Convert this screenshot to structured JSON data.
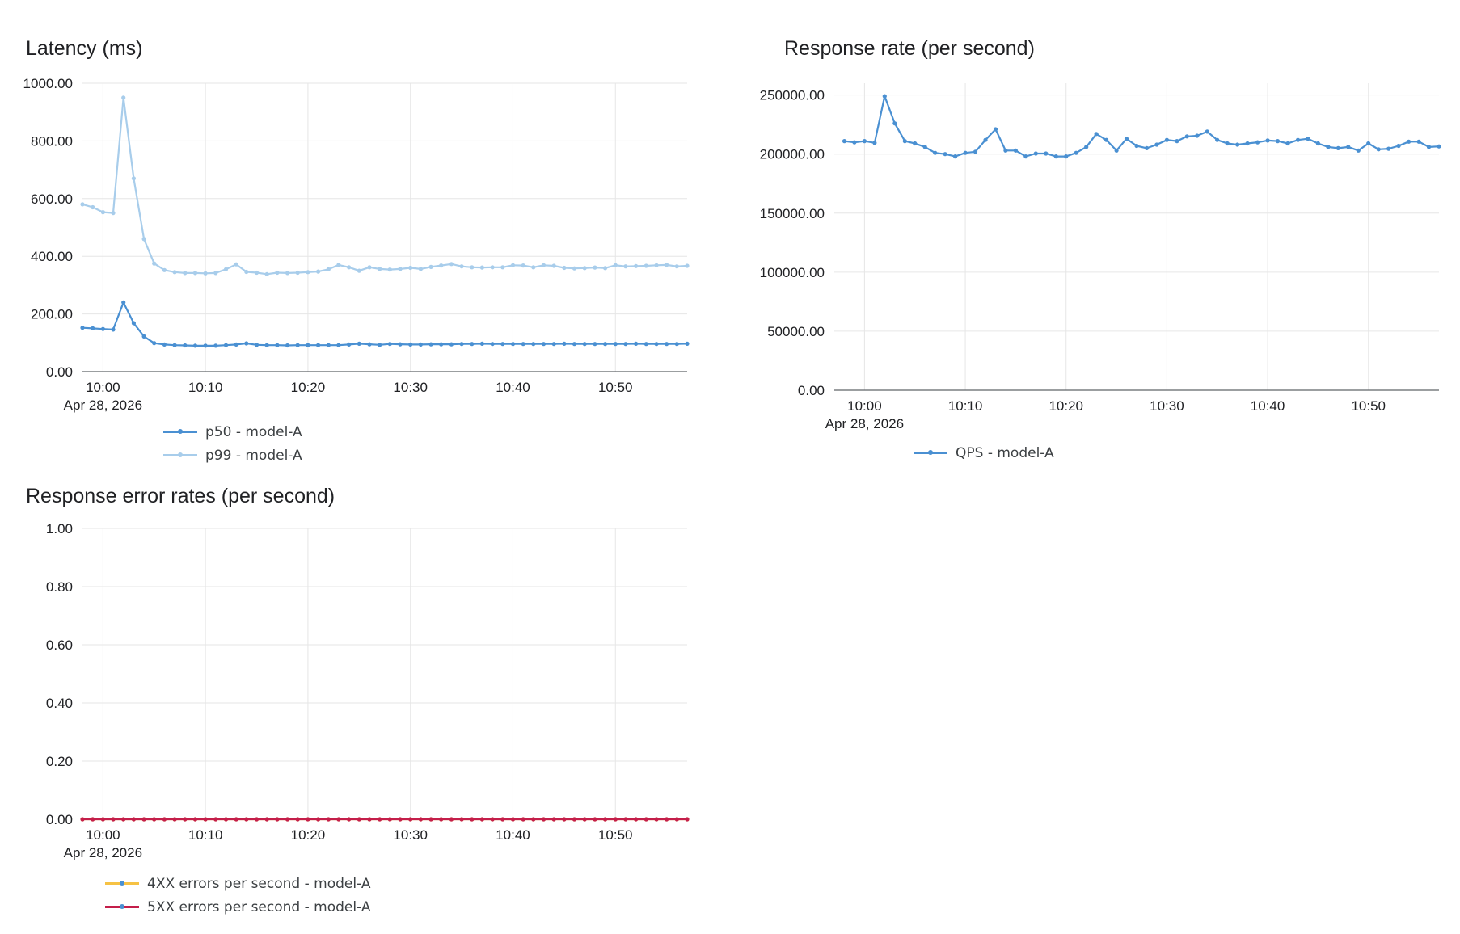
{
  "chart_data": [
    {
      "id": "latency",
      "type": "line",
      "title": "Latency (ms)",
      "xlabel": "",
      "ylabel": "",
      "date_label": "Apr 28, 2026",
      "x_start": "09:58",
      "x_step_minutes": 1,
      "xlim": [
        "09:58",
        "10:57"
      ],
      "x_ticks": [
        "10:00",
        "10:10",
        "10:20",
        "10:30",
        "10:40",
        "10:50"
      ],
      "ylim": [
        0,
        1000
      ],
      "y_ticks": [
        "0.00",
        "200.00",
        "400.00",
        "600.00",
        "800.00",
        "1000.00"
      ],
      "grid": true,
      "legend": "bottom",
      "series": [
        {
          "name": "p50 - model-A",
          "color": "#4a90d2",
          "values": [
            152,
            150,
            148,
            146,
            240,
            168,
            122,
            99,
            94,
            92,
            91,
            90,
            90,
            90,
            92,
            94,
            98,
            93,
            92,
            92,
            91,
            92,
            92,
            92,
            92,
            92,
            94,
            97,
            95,
            93,
            96,
            95,
            94,
            94,
            95,
            95,
            95,
            96,
            96,
            97,
            96,
            96,
            96,
            96,
            96,
            96,
            96,
            97,
            96,
            96,
            96,
            96,
            96,
            96,
            97,
            96,
            96,
            96,
            96,
            97
          ]
        },
        {
          "name": "p99 - model-A",
          "color": "#a8cdeb",
          "values": [
            580,
            570,
            553,
            550,
            950,
            670,
            460,
            375,
            352,
            345,
            342,
            342,
            341,
            342,
            355,
            372,
            346,
            343,
            338,
            343,
            342,
            343,
            345,
            347,
            355,
            370,
            362,
            350,
            362,
            356,
            354,
            356,
            360,
            356,
            363,
            368,
            373,
            365,
            362,
            361,
            362,
            362,
            369,
            368,
            362,
            369,
            367,
            360,
            358,
            359,
            361,
            359,
            369,
            365,
            366,
            367,
            369,
            370,
            365,
            367
          ]
        }
      ]
    },
    {
      "id": "qps",
      "type": "line",
      "title": "Response rate (per second)",
      "xlabel": "",
      "ylabel": "",
      "date_label": "Apr 28, 2026",
      "x_start": "09:58",
      "x_step_minutes": 1,
      "xlim": [
        "09:57",
        "10:57"
      ],
      "x_ticks": [
        "10:00",
        "10:10",
        "10:20",
        "10:30",
        "10:40",
        "10:50"
      ],
      "ylim": [
        0,
        260000
      ],
      "y_ticks": [
        "0.00",
        "50000.00",
        "100000.00",
        "150000.00",
        "200000.00",
        "250000.00"
      ],
      "grid": true,
      "legend": "bottom",
      "series": [
        {
          "name": "QPS - model-A",
          "color": "#4a90d2",
          "values": [
            211000,
            210000,
            211000,
            209500,
            249000,
            226000,
            211000,
            209000,
            206000,
            201000,
            200000,
            198000,
            201000,
            202000,
            212000,
            221000,
            203000,
            203000,
            198000,
            200500,
            200500,
            198000,
            198000,
            201000,
            206000,
            217000,
            212000,
            203000,
            213000,
            207000,
            205000,
            208000,
            212000,
            211000,
            215000,
            215500,
            219000,
            212000,
            209000,
            208000,
            209000,
            210000,
            211500,
            211000,
            209000,
            212000,
            213000,
            209000,
            206000,
            205000,
            206000,
            203000,
            209000,
            204000,
            204500,
            207000,
            210500,
            210500,
            206000,
            206500
          ]
        }
      ]
    },
    {
      "id": "errors",
      "type": "line",
      "title": "Response error rates (per second)",
      "xlabel": "",
      "ylabel": "",
      "date_label": "Apr 28, 2026",
      "x_start": "09:58",
      "x_step_minutes": 1,
      "xlim": [
        "09:58",
        "10:57"
      ],
      "x_ticks": [
        "10:00",
        "10:10",
        "10:20",
        "10:30",
        "10:40",
        "10:50"
      ],
      "ylim": [
        0,
        1
      ],
      "y_ticks": [
        "0.00",
        "0.20",
        "0.40",
        "0.60",
        "0.80",
        "1.00"
      ],
      "grid": true,
      "legend": "bottom",
      "series": [
        {
          "name": "4XX errors per second - model-A",
          "color": "#f6c244",
          "values": [
            0,
            0,
            0,
            0,
            0,
            0,
            0,
            0,
            0,
            0,
            0,
            0,
            0,
            0,
            0,
            0,
            0,
            0,
            0,
            0,
            0,
            0,
            0,
            0,
            0,
            0,
            0,
            0,
            0,
            0,
            0,
            0,
            0,
            0,
            0,
            0,
            0,
            0,
            0,
            0,
            0,
            0,
            0,
            0,
            0,
            0,
            0,
            0,
            0,
            0,
            0,
            0,
            0,
            0,
            0,
            0,
            0,
            0,
            0,
            0
          ]
        },
        {
          "name": "5XX errors per second - model-A",
          "color": "#c41e4a",
          "values": [
            0,
            0,
            0,
            0,
            0,
            0,
            0,
            0,
            0,
            0,
            0,
            0,
            0,
            0,
            0,
            0,
            0,
            0,
            0,
            0,
            0,
            0,
            0,
            0,
            0,
            0,
            0,
            0,
            0,
            0,
            0,
            0,
            0,
            0,
            0,
            0,
            0,
            0,
            0,
            0,
            0,
            0,
            0,
            0,
            0,
            0,
            0,
            0,
            0,
            0,
            0,
            0,
            0,
            0,
            0,
            0,
            0,
            0,
            0,
            0
          ]
        }
      ]
    }
  ]
}
